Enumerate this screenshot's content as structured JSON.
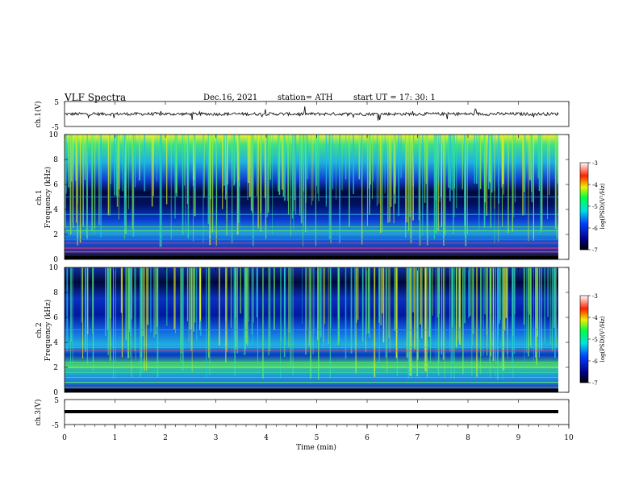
{
  "header": {
    "title": "VLF Spectra",
    "date": "Dec.16, 2021",
    "station": "station= ATH",
    "start_ut": "start UT =   17: 30: 1"
  },
  "chart_data": [
    {
      "type": "line",
      "name": "ch1-waveform",
      "ylabel": "ch.1(V)",
      "ylim": [
        -5,
        5
      ],
      "yticks": [
        "5",
        "-5"
      ],
      "xlim": [
        0,
        10
      ]
    },
    {
      "type": "heatmap",
      "name": "ch1-spectrogram",
      "ylabel": "Frequency (kHz)",
      "ylabel2": "ch.1",
      "ylim": [
        0,
        10
      ],
      "yticks": [
        "0",
        "2",
        "4",
        "6",
        "8",
        "10"
      ],
      "xlim": [
        0,
        10
      ],
      "colorbar": {
        "label": "log(PSD)(V²/Hz)",
        "range": [
          -7,
          -3
        ],
        "ticks": [
          "-3",
          "-4",
          "-5",
          "-6",
          "-7"
        ]
      }
    },
    {
      "type": "heatmap",
      "name": "ch2-spectrogram",
      "ylabel": "Frequency (kHz)",
      "ylabel2": "ch.2",
      "ylim": [
        0,
        10
      ],
      "yticks": [
        "0",
        "2",
        "4",
        "6",
        "8",
        "10"
      ],
      "xlim": [
        0,
        10
      ],
      "colorbar": {
        "label": "log(PSD)(V²/Hz)",
        "range": [
          -7,
          -3
        ],
        "ticks": [
          "-3",
          "-4",
          "-5",
          "-6",
          "-7"
        ]
      }
    },
    {
      "type": "line",
      "name": "ch3-waveform",
      "ylabel": "ch.3(V)",
      "ylim": [
        -5,
        5
      ],
      "yticks": [
        "5",
        "-5"
      ],
      "xlim": [
        0,
        10
      ]
    }
  ],
  "xaxis": {
    "label": "Time (min)",
    "ticks": [
      "0",
      "1",
      "2",
      "3",
      "4",
      "5",
      "6",
      "7",
      "8",
      "9",
      "10"
    ]
  }
}
